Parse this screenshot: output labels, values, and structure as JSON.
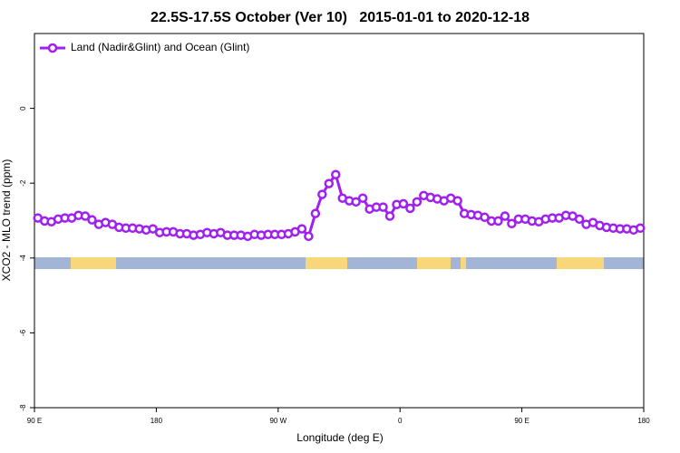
{
  "chart_data": {
    "type": "line",
    "title": "22.5S-17.5S October (Ver 10)   2015-01-01 to 2020-12-18",
    "xlabel": "Longitude (deg E)",
    "ylabel": "XCO2 - MLO trend (ppm)",
    "xlim": [
      90,
      540
    ],
    "ylim": [
      -8,
      2
    ],
    "xticks": [
      {
        "value": 90,
        "label": "90 E"
      },
      {
        "value": 180,
        "label": "180"
      },
      {
        "value": 270,
        "label": "90 W"
      },
      {
        "value": 360,
        "label": "0"
      },
      {
        "value": 450,
        "label": "90 E"
      },
      {
        "value": 540,
        "label": "180"
      }
    ],
    "yticks": [
      -8,
      -6,
      -4,
      -2,
      0
    ],
    "legend": "top-left",
    "x": [
      92.5,
      97.5,
      102.5,
      107.5,
      112.5,
      117.5,
      122.5,
      127.5,
      132.5,
      137.5,
      142.5,
      147.5,
      152.5,
      157.5,
      162.5,
      167.5,
      172.5,
      177.5,
      182.5,
      187.5,
      192.5,
      197.5,
      202.5,
      207.5,
      212.5,
      217.5,
      222.5,
      227.5,
      232.5,
      237.5,
      242.5,
      247.5,
      252.5,
      257.5,
      262.5,
      267.5,
      272.5,
      277.5,
      282.5,
      287.5,
      292.5,
      297.5,
      302.5,
      307.5,
      312.5,
      317.5,
      322.5,
      327.5,
      332.5,
      337.5,
      342.5,
      347.5,
      352.5,
      357.5,
      362.5,
      367.5,
      372.5,
      377.5,
      382.5,
      387.5,
      392.5,
      397.5,
      402.5,
      407.5,
      412.5,
      417.5,
      422.5,
      427.5,
      432.5,
      437.5,
      442.5,
      447.5,
      452.5,
      457.5,
      462.5,
      467.5,
      472.5,
      477.5,
      482.5,
      487.5,
      492.5,
      497.5,
      502.5,
      507.5,
      512.5,
      517.5,
      522.5,
      527.5,
      532.5,
      537.5
    ],
    "series": [
      {
        "name": "Land (Nadir&Glint) and Ocean (Glint)",
        "color": "#a020f0",
        "values": [
          -2.93,
          -3.01,
          -3.03,
          -2.96,
          -2.93,
          -2.93,
          -2.86,
          -2.88,
          -2.98,
          -3.1,
          -3.05,
          -3.1,
          -3.18,
          -3.2,
          -3.2,
          -3.22,
          -3.25,
          -3.22,
          -3.32,
          -3.3,
          -3.3,
          -3.35,
          -3.35,
          -3.39,
          -3.37,
          -3.32,
          -3.35,
          -3.32,
          -3.39,
          -3.39,
          -3.39,
          -3.42,
          -3.37,
          -3.39,
          -3.37,
          -3.37,
          -3.37,
          -3.35,
          -3.3,
          -3.22,
          -3.42,
          -2.81,
          -2.3,
          -2.01,
          -1.77,
          -2.4,
          -2.47,
          -2.5,
          -2.4,
          -2.69,
          -2.64,
          -2.64,
          -2.88,
          -2.57,
          -2.55,
          -2.67,
          -2.5,
          -2.33,
          -2.38,
          -2.42,
          -2.47,
          -2.4,
          -2.47,
          -2.81,
          -2.84,
          -2.86,
          -2.91,
          -3.01,
          -3.01,
          -2.88,
          -3.08,
          -2.96,
          -2.96,
          -3.01,
          -3.03,
          -2.96,
          -2.93,
          -2.93,
          -2.86,
          -2.88,
          -2.96,
          -3.1,
          -3.05,
          -3.13,
          -3.18,
          -3.2,
          -3.22,
          -3.22,
          -3.25,
          -3.2
        ]
      }
    ]
  }
}
